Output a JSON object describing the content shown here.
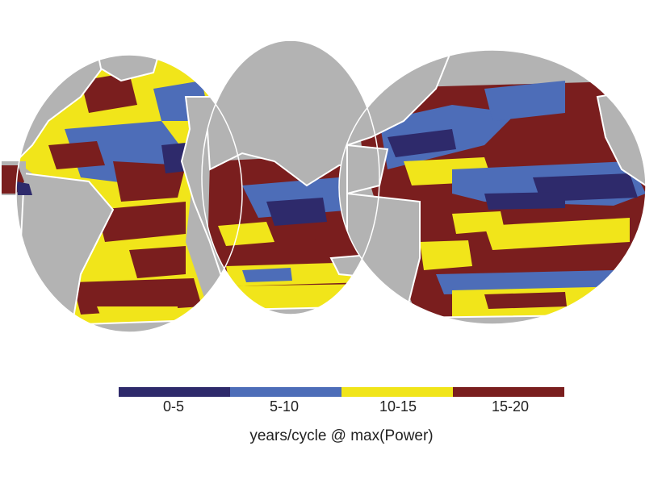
{
  "colors": {
    "land": "#b3b3b3",
    "coast": "#ffffff",
    "bin_0_5": "#2e2a6b",
    "bin_5_10": "#4d6db8",
    "bin_10_15": "#f1e51a",
    "bin_15_20": "#7a1e1e"
  },
  "legend": {
    "bins": [
      {
        "label": "0-5",
        "color": "#2e2a6b"
      },
      {
        "label": "5-10",
        "color": "#4d6db8"
      },
      {
        "label": "10-15",
        "color": "#f1e51a"
      },
      {
        "label": "15-20",
        "color": "#7a1e1e"
      }
    ],
    "title": "years/cycle @ max(Power)"
  }
}
